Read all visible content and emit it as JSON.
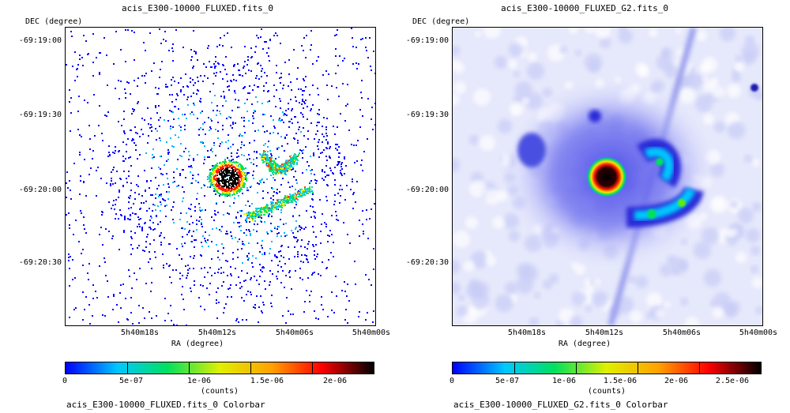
{
  "panels": [
    {
      "title": "acis_E300-10000_FLUXED.fits_0",
      "dec_label": "DEC (degree)",
      "ra_label": "RA (degree)",
      "y_ticks": [
        "-69:19:00",
        "-69:19:30",
        "-69:20:00",
        "-69:20:30"
      ],
      "x_ticks": [
        "5h40m18s",
        "5h40m12s",
        "5h40m06s",
        "5h40m00s"
      ],
      "colorbar_ticks": [
        "0",
        "5e-07",
        "1e-06",
        "1.5e-06",
        "2e-06"
      ],
      "colorbar_units": "(counts)",
      "colorbar_caption": "acis_E300-10000_FLUXED.fits_0 Colorbar",
      "image_style": "raw-speckle"
    },
    {
      "title": "acis_E300-10000_FLUXED_G2.fits_0",
      "dec_label": "DEC (degree)",
      "ra_label": "RA (degree)",
      "y_ticks": [
        "-69:19:00",
        "-69:19:30",
        "-69:20:00",
        "-69:20:30"
      ],
      "x_ticks": [
        "5h40m18s",
        "5h40m12s",
        "5h40m06s",
        "5h40m00s"
      ],
      "colorbar_ticks": [
        "0",
        "5e-07",
        "1e-06",
        "1.5e-06",
        "2e-06",
        "2.5e-06"
      ],
      "colorbar_units": "(counts)",
      "colorbar_caption": "acis_E300-10000_FLUXED_G2.fits_0 Colorbar",
      "image_style": "smoothed"
    }
  ],
  "colormap": [
    "#ffffff",
    "#0000ff",
    "#00c8ff",
    "#00e060",
    "#e0f000",
    "#ffa000",
    "#ff0000",
    "#000000"
  ]
}
